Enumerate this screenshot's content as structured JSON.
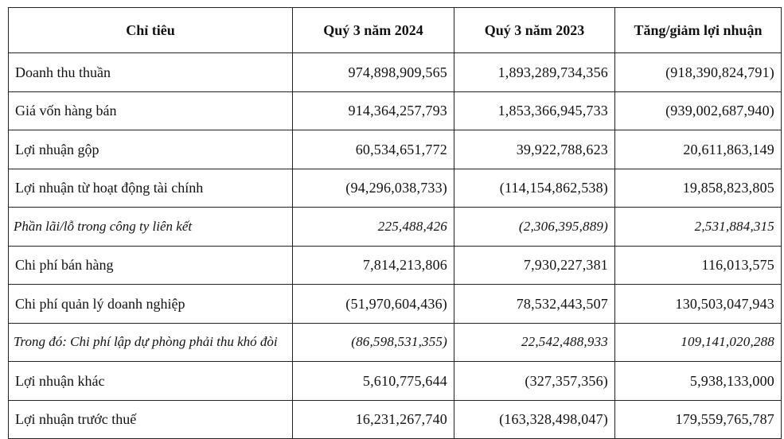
{
  "table": {
    "headers": [
      "Chỉ tiêu",
      "Quý 3 năm 2024",
      "Quý 3 năm 2023",
      "Tăng/giảm lợi nhuận"
    ],
    "rows": [
      {
        "label": "Doanh thu thuần",
        "q3_2024": "974,898,909,565",
        "q3_2023": "1,893,289,734,356",
        "change": "(918,390,824,791)",
        "italic": false
      },
      {
        "label": "Giá vốn hàng bán",
        "q3_2024": "914,364,257,793",
        "q3_2023": "1,853,366,945,733",
        "change": "(939,002,687,940)",
        "italic": false
      },
      {
        "label": "Lợi nhuận gộp",
        "q3_2024": "60,534,651,772",
        "q3_2023": "39,922,788,623",
        "change": "20,611,863,149",
        "italic": false
      },
      {
        "label": "Lợi nhuận từ hoạt động tài chính",
        "q3_2024": "(94,296,038,733)",
        "q3_2023": "(114,154,862,538)",
        "change": "19,858,823,805",
        "italic": false
      },
      {
        "label": "Phần lãi/lỗ trong công ty liên kết",
        "q3_2024": "225,488,426",
        "q3_2023": "(2,306,395,889)",
        "change": "2,531,884,315",
        "italic": true
      },
      {
        "label": "Chi phí bán hàng",
        "q3_2024": "7,814,213,806",
        "q3_2023": "7,930,227,381",
        "change": "116,013,575",
        "italic": false
      },
      {
        "label": "Chi phí quản lý doanh nghiệp",
        "q3_2024": "(51,970,604,436)",
        "q3_2023": "78,532,443,507",
        "change": "130,503,047,943",
        "italic": false
      },
      {
        "label": "Trong đó: Chi phí lập dự phòng phải thu khó đòi",
        "q3_2024": "(86,598,531,355)",
        "q3_2023": "22,542,488,933",
        "change": "109,141,020,288",
        "italic": true
      },
      {
        "label": "Lợi nhuận khác",
        "q3_2024": "5,610,775,644",
        "q3_2023": "(327,357,356)",
        "change": "5,938,133,000",
        "italic": false
      },
      {
        "label": "Lợi nhuận trước thuế",
        "q3_2024": "16,231,267,740",
        "q3_2023": "(163,328,498,047)",
        "change": "179,559,765,787",
        "italic": false
      }
    ]
  }
}
